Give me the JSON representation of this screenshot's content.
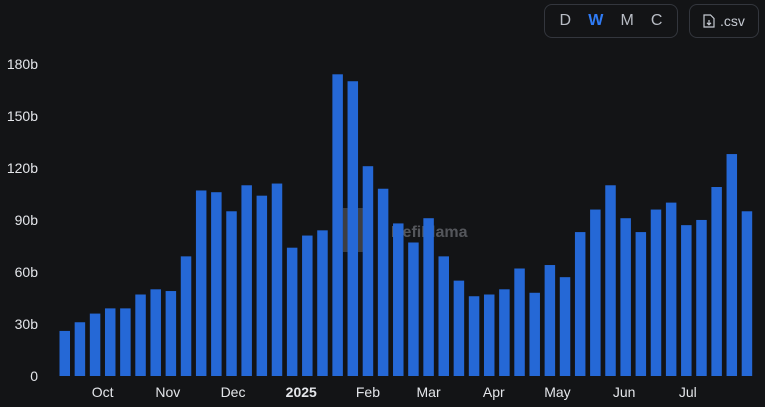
{
  "toolbar": {
    "periods": [
      "D",
      "W",
      "M",
      "C"
    ],
    "active_period": "W",
    "csv_label": ".csv",
    "csv_icon": "file-download-icon"
  },
  "watermark": {
    "text": "DefiLlama",
    "icon": "llama-logo-icon"
  },
  "colors": {
    "bar": "#2568d6",
    "background": "#131416",
    "active": "#2f7bf5"
  },
  "chart_data": {
    "type": "bar",
    "title": "",
    "xlabel": "",
    "ylabel": "",
    "ylim": [
      0,
      190
    ],
    "y_unit": "b",
    "yticks": [
      {
        "value": 0,
        "label": "0"
      },
      {
        "value": 30,
        "label": "30b"
      },
      {
        "value": 60,
        "label": "60b"
      },
      {
        "value": 90,
        "label": "90b"
      },
      {
        "value": 120,
        "label": "120b"
      },
      {
        "value": 150,
        "label": "150b"
      },
      {
        "value": 180,
        "label": "180b"
      }
    ],
    "xticks": [
      {
        "label": "Oct",
        "at": 2.5,
        "bold": false
      },
      {
        "label": "Nov",
        "at": 6.8,
        "bold": false
      },
      {
        "label": "Dec",
        "at": 11.1,
        "bold": false
      },
      {
        "label": "2025",
        "at": 15.6,
        "bold": true
      },
      {
        "label": "Feb",
        "at": 20.0,
        "bold": false
      },
      {
        "label": "Mar",
        "at": 24.0,
        "bold": false
      },
      {
        "label": "Apr",
        "at": 28.3,
        "bold": false
      },
      {
        "label": "May",
        "at": 32.5,
        "bold": false
      },
      {
        "label": "Jun",
        "at": 36.9,
        "bold": false
      },
      {
        "label": "Jul",
        "at": 41.1,
        "bold": false
      }
    ],
    "grid": false,
    "legend": "none",
    "series": [
      {
        "values": [
          26,
          31,
          36,
          39,
          39,
          47,
          50,
          49,
          69,
          107,
          106,
          95,
          110,
          104,
          111,
          74,
          81,
          84,
          174,
          170,
          121,
          108,
          88,
          77,
          91,
          69,
          55,
          46,
          47,
          50,
          62,
          48,
          64,
          57,
          83,
          96,
          110,
          91,
          83,
          96,
          100,
          87,
          90,
          109,
          128,
          95
        ]
      }
    ]
  }
}
